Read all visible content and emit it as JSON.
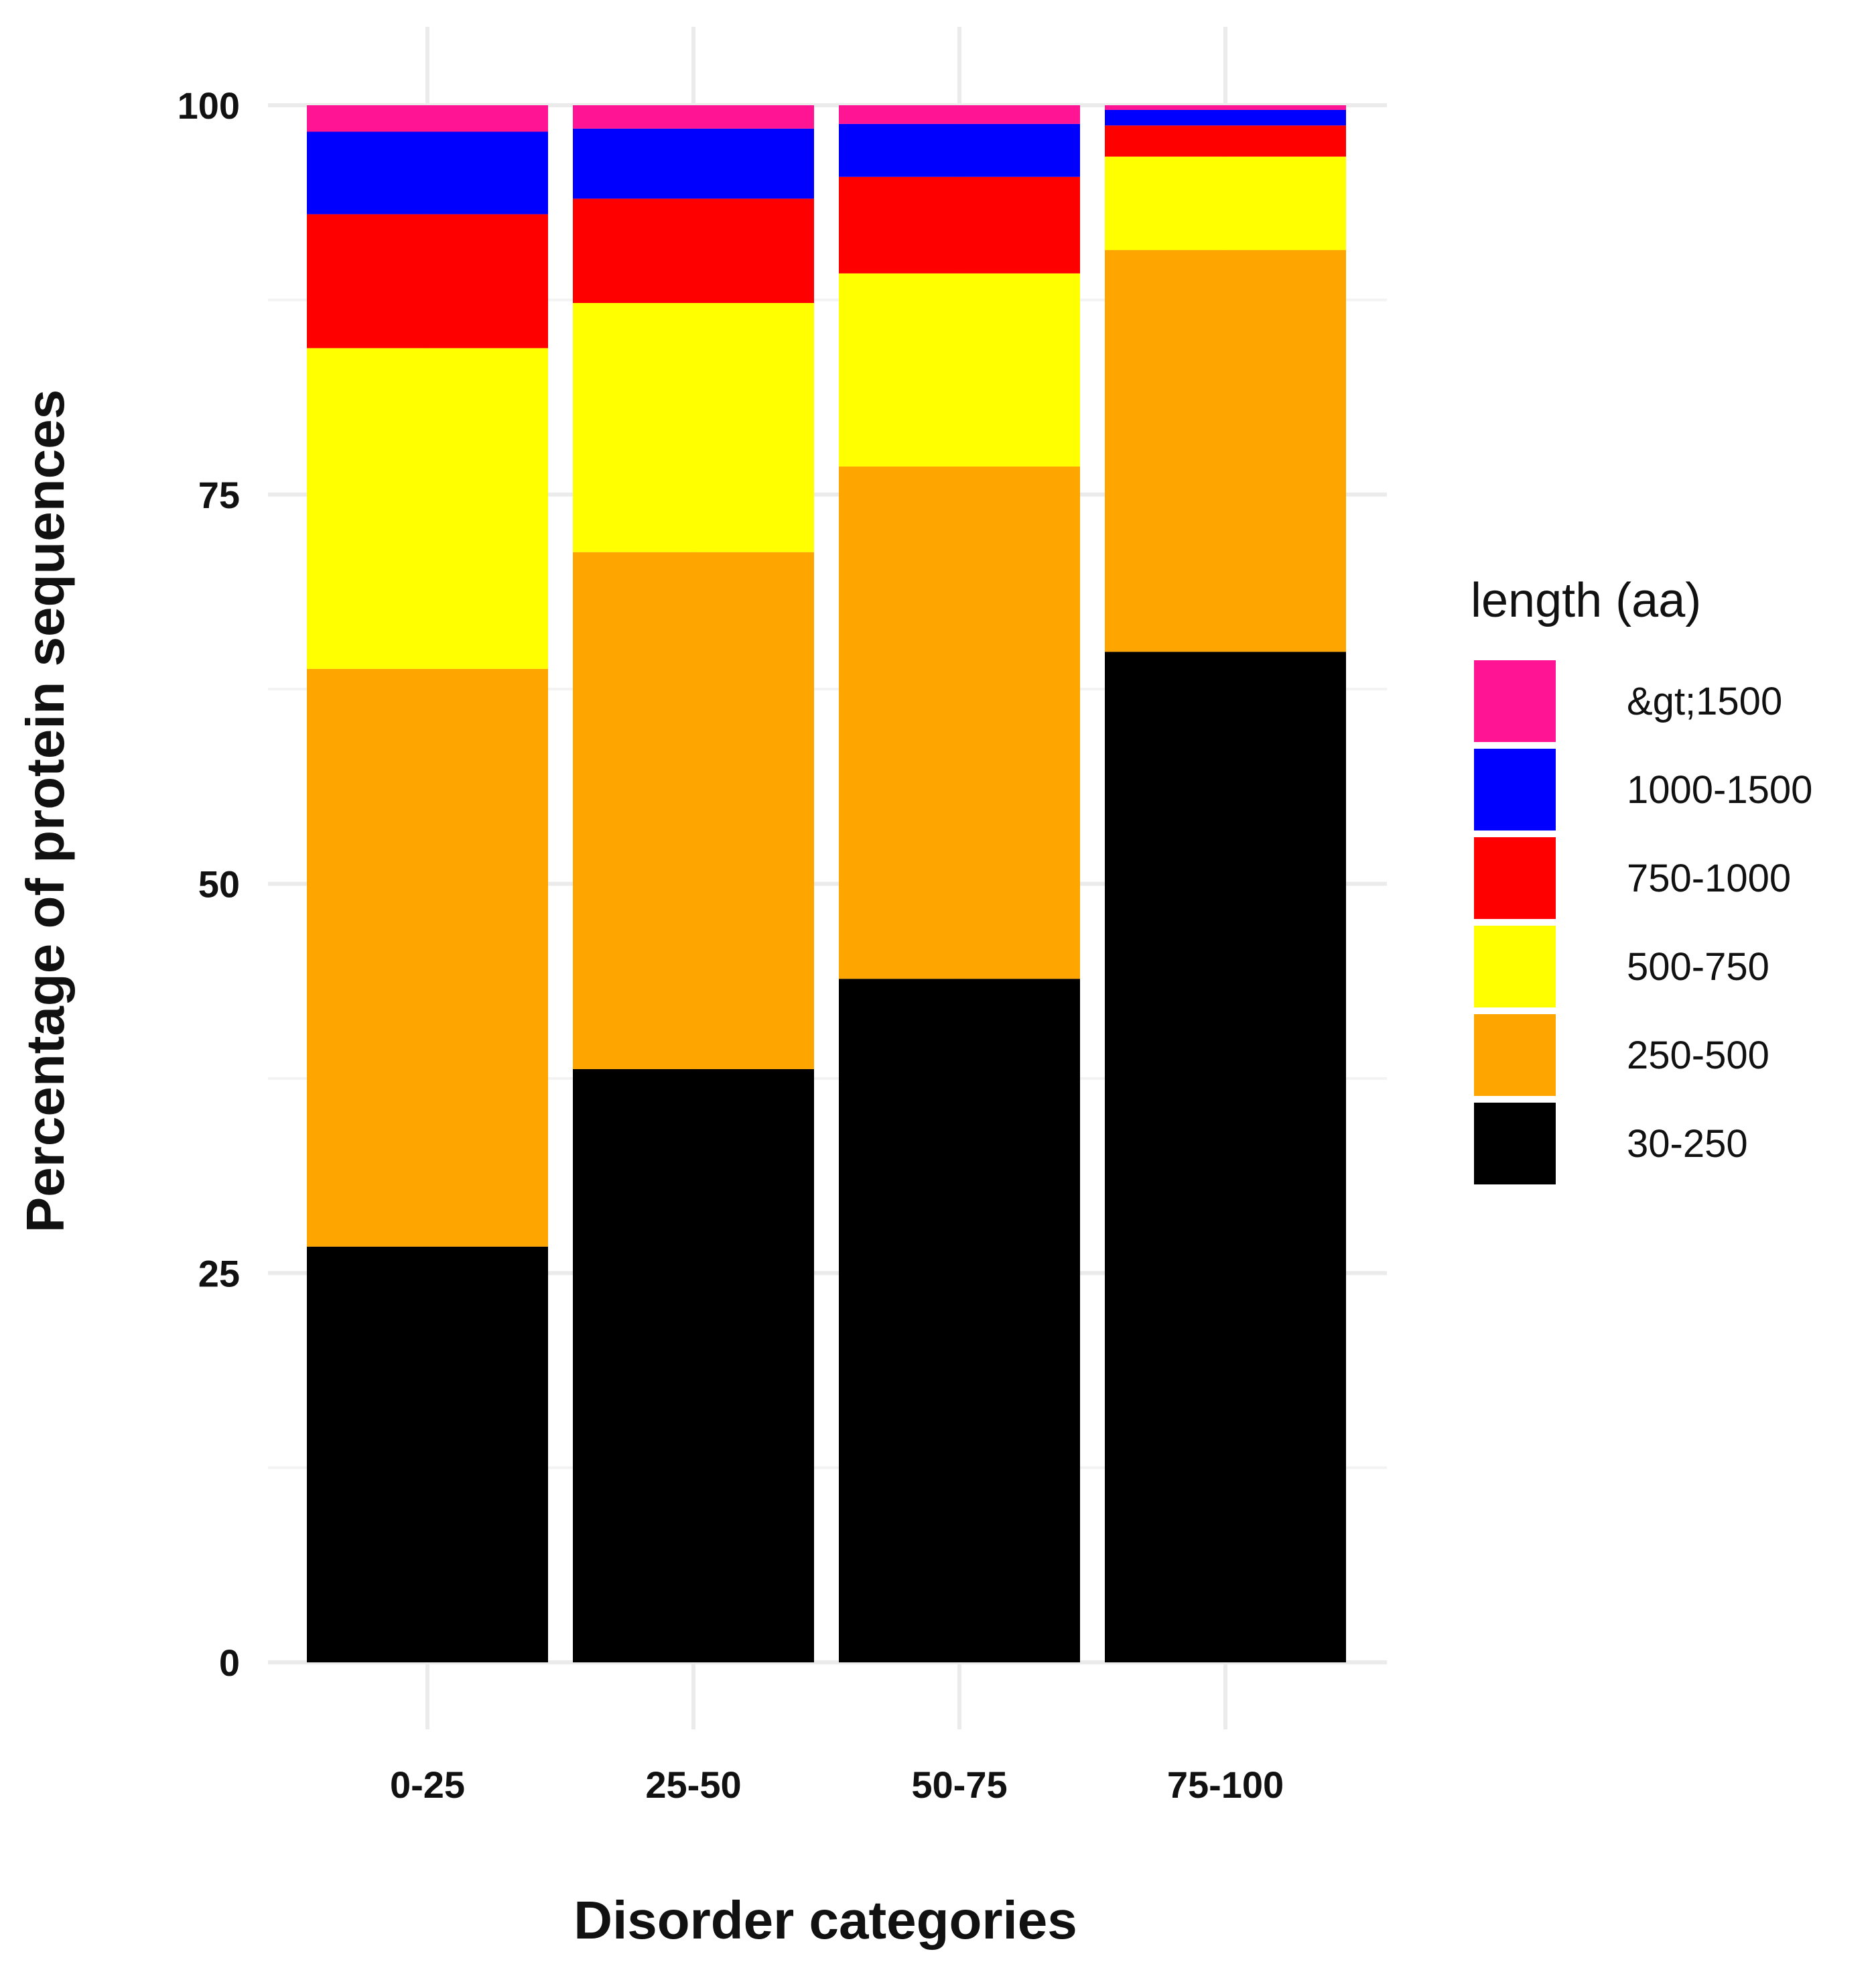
{
  "chart_data": {
    "type": "bar",
    "stacked": true,
    "xlabel": "Disorder categories",
    "ylabel": "Percentage of protein sequences",
    "ylim": [
      0,
      100
    ],
    "yticks": [
      0,
      25,
      50,
      75,
      100
    ],
    "categories": [
      "0-25",
      "25-50",
      "50-75",
      "75-100"
    ],
    "legend_title": "length (aa)",
    "legend_order": [
      "&gt;1500",
      "1000-1500",
      "750-1000",
      "500-750",
      "250-500",
      "30-250"
    ],
    "series": [
      {
        "name": "30-250",
        "color": "#000000",
        "values": [
          26.7,
          38.1,
          43.9,
          64.9
        ]
      },
      {
        "name": "250-500",
        "color": "#FFA500",
        "values": [
          37.1,
          33.2,
          32.9,
          25.8
        ]
      },
      {
        "name": "500-750",
        "color": "#FFFF00",
        "values": [
          20.6,
          16.0,
          12.4,
          6.0
        ]
      },
      {
        "name": "750-1000",
        "color": "#FF0000",
        "values": [
          8.6,
          6.7,
          6.2,
          2.0
        ]
      },
      {
        "name": "1000-1500",
        "color": "#0000FF",
        "values": [
          5.3,
          4.5,
          3.4,
          1.0
        ]
      },
      {
        "name": "&gt;1500",
        "color": "#FF1493",
        "values": [
          1.7,
          1.5,
          1.2,
          0.3
        ]
      }
    ]
  }
}
